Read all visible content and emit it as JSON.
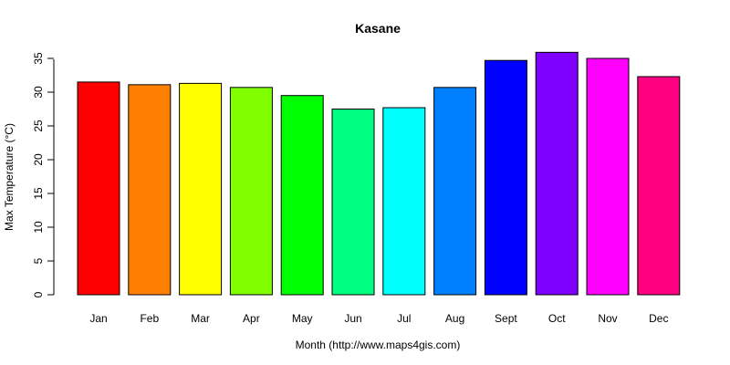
{
  "chart_data": {
    "type": "bar",
    "title": "Kasane",
    "xlabel": "Month (http://www.maps4gis.com)",
    "ylabel": "Max Temperature (°C)",
    "categories": [
      "Jan",
      "Feb",
      "Mar",
      "Apr",
      "May",
      "Jun",
      "Jul",
      "Aug",
      "Sept",
      "Oct",
      "Nov",
      "Dec"
    ],
    "values": [
      31.5,
      31.1,
      31.3,
      30.7,
      29.5,
      27.5,
      27.7,
      30.7,
      34.7,
      35.9,
      35.0,
      32.3
    ],
    "colors": [
      "#FF0000",
      "#FF8000",
      "#FFFF00",
      "#80FF00",
      "#00FF00",
      "#00FF80",
      "#00FFFF",
      "#0080FF",
      "#0000FF",
      "#8000FF",
      "#FF00FF",
      "#FF0080"
    ],
    "yticks": [
      0,
      5,
      10,
      15,
      20,
      25,
      30,
      35
    ],
    "ylim": [
      0,
      36
    ],
    "grid": false,
    "legend": "none"
  }
}
